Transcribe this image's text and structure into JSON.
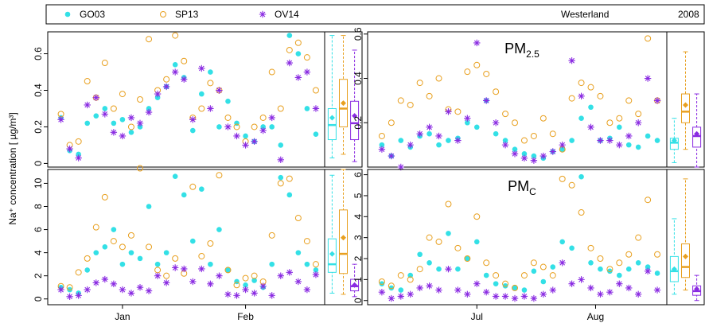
{
  "figure": {
    "ylabel": "Na⁺ concentration [ µg/m³]",
    "location": "Westerland",
    "year": "2008"
  },
  "chart_data": [
    {
      "type": "scatter",
      "x": [
        1,
        3,
        5,
        7,
        9,
        11,
        13,
        15,
        17,
        19,
        21,
        23,
        25,
        27,
        29,
        31,
        33,
        35,
        37,
        39,
        41,
        43,
        45,
        47,
        49,
        51,
        53,
        55,
        57,
        59
      ],
      "xlim": [
        -2,
        61
      ],
      "ylim": [
        -0.02,
        0.72
      ],
      "yticks": [
        0,
        0.2,
        0.4,
        0.6
      ],
      "series": [
        {
          "name": "GO03",
          "color": "#33e0e6",
          "marker": "filled-circle",
          "values": [
            0.25,
            0.07,
            0.05,
            0.22,
            0.26,
            0.3,
            0.22,
            0.24,
            0.17,
            0.2,
            0.3,
            0.36,
            0.42,
            0.54,
            0.47,
            0.18,
            0.38,
            0.5,
            0.2,
            0.34,
            0.22,
            0.15,
            0.12,
            0.2,
            0.2,
            0.1,
            0.7,
            0.6,
            0.3,
            0.16
          ],
          "box": {
            "low": 0.03,
            "q1": 0.13,
            "median": 0.21,
            "q3": 0.3,
            "high": 0.7,
            "mean": 0.25
          }
        },
        {
          "name": "SP13",
          "color": "#e8a020",
          "marker": "open-circle",
          "values": [
            0.27,
            0.1,
            0.12,
            0.45,
            0.36,
            0.55,
            0.3,
            0.38,
            0.2,
            0.35,
            0.68,
            0.4,
            0.46,
            0.7,
            0.56,
            0.25,
            0.3,
            0.44,
            0.4,
            0.25,
            0.2,
            0.12,
            0.2,
            0.25,
            0.5,
            0.3,
            0.62,
            0.66,
            0.58,
            0.4
          ],
          "box": {
            "low": 0.05,
            "q1": 0.2,
            "median": 0.3,
            "q3": 0.46,
            "high": 0.7,
            "mean": 0.33
          }
        },
        {
          "name": "OV14",
          "color": "#8a2be2",
          "marker": "asterisk",
          "values": [
            0.24,
            0.08,
            0.03,
            0.32,
            0.36,
            0.27,
            0.17,
            0.15,
            0.25,
            0.22,
            0.28,
            0.38,
            0.42,
            0.5,
            0.46,
            0.24,
            0.52,
            0.3,
            0.4,
            0.2,
            0.15,
            0.1,
            0.12,
            0.18,
            0.25,
            0.02,
            0.55,
            0.47,
            0.5,
            0.3
          ],
          "box": {
            "low": 0.01,
            "q1": 0.13,
            "median": 0.22,
            "q3": 0.34,
            "high": 0.62,
            "mean": 0.26
          }
        }
      ]
    },
    {
      "type": "scatter",
      "annotation": "PM",
      "annotation_sub": "2.5",
      "x": [
        1,
        3,
        5,
        7,
        9,
        11,
        13,
        15,
        17,
        19,
        21,
        23,
        25,
        27,
        29,
        31,
        33,
        35,
        37,
        39,
        41,
        43,
        45,
        47,
        49,
        51,
        53,
        55,
        57,
        59
      ],
      "xlim": [
        -2,
        61
      ],
      "ylim": [
        0,
        0.61
      ],
      "yticks": [
        0.2,
        0.4,
        0.6
      ],
      "series": [
        {
          "name": "GO03",
          "color": "#33e0e6",
          "marker": "filled-circle",
          "values": [
            0.1,
            0.05,
            0.12,
            0.09,
            0.14,
            0.15,
            0.1,
            0.12,
            0.13,
            0.2,
            0.18,
            0.3,
            0.15,
            0.12,
            0.08,
            0.06,
            0.05,
            0.04,
            0.07,
            0.08,
            0.12,
            0.22,
            0.27,
            0.12,
            0.13,
            0.18,
            0.1,
            0.09,
            0.14,
            0.12
          ],
          "box": {
            "low": 0.02,
            "q1": 0.08,
            "median": 0.11,
            "q3": 0.13,
            "high": 0.22,
            "mean": 0.12
          }
        },
        {
          "name": "SP13",
          "color": "#e8a020",
          "marker": "open-circle",
          "values": [
            0.14,
            0.2,
            0.3,
            0.28,
            0.38,
            0.32,
            0.4,
            0.26,
            0.25,
            0.43,
            0.46,
            0.42,
            0.34,
            0.24,
            0.2,
            0.12,
            0.14,
            0.22,
            0.15,
            0.08,
            0.31,
            0.38,
            0.36,
            0.32,
            0.2,
            0.22,
            0.3,
            0.24,
            0.58,
            0.3
          ],
          "box": {
            "low": 0.08,
            "q1": 0.2,
            "median": 0.25,
            "q3": 0.33,
            "high": 0.52,
            "mean": 0.28
          }
        },
        {
          "name": "OV14",
          "color": "#8a2be2",
          "marker": "asterisk",
          "values": [
            0.08,
            0.05,
            0.0,
            0.1,
            0.15,
            0.18,
            0.14,
            0.25,
            0.12,
            0.22,
            0.56,
            0.3,
            0.2,
            0.1,
            0.06,
            0.04,
            0.03,
            0.05,
            0.07,
            0.1,
            0.48,
            0.32,
            0.18,
            0.12,
            0.12,
            0.1,
            0.14,
            0.2,
            0.4,
            0.3
          ],
          "box": {
            "low": 0.0,
            "q1": 0.09,
            "median": 0.14,
            "q3": 0.18,
            "high": 0.33,
            "mean": 0.15
          }
        }
      ]
    },
    {
      "type": "scatter",
      "x": [
        1,
        3,
        5,
        7,
        9,
        11,
        13,
        15,
        17,
        19,
        21,
        23,
        25,
        27,
        29,
        31,
        33,
        35,
        37,
        39,
        41,
        43,
        45,
        47,
        49,
        51,
        53,
        55,
        57,
        59
      ],
      "xlim": [
        -2,
        61
      ],
      "xticks": [
        {
          "value": 15,
          "label": "Jan"
        },
        {
          "value": 43,
          "label": "Feb"
        }
      ],
      "ylim": [
        -0.5,
        11.2
      ],
      "yticks": [
        0,
        2,
        4,
        6,
        8,
        10
      ],
      "series": [
        {
          "name": "GO03",
          "color": "#33e0e6",
          "marker": "filled-circle",
          "values": [
            1.0,
            0.8,
            0.5,
            2.5,
            4.0,
            4.5,
            6.0,
            3.0,
            4.0,
            3.5,
            8.0,
            3.0,
            4.0,
            10.6,
            9.0,
            5.0,
            9.5,
            3.0,
            6.0,
            2.5,
            1.5,
            1.2,
            1.6,
            1.0,
            3.0,
            10.5,
            9.0,
            4.0,
            3.0,
            2.5
          ],
          "box": {
            "low": 0.5,
            "q1": 2.3,
            "median": 3.0,
            "q3": 5.2,
            "high": 10.7,
            "mean": 3.9
          }
        },
        {
          "name": "SP13",
          "color": "#e8a020",
          "marker": "open-circle",
          "values": [
            1.1,
            1.0,
            2.3,
            3.5,
            6.2,
            8.8,
            5.0,
            4.5,
            5.5,
            11.3,
            4.5,
            2.5,
            2.0,
            3.5,
            2.2,
            9.7,
            3.7,
            4.8,
            10.7,
            2.5,
            1.2,
            1.8,
            2.0,
            1.5,
            5.5,
            10.0,
            10.4,
            7.0,
            5.0,
            3.0
          ],
          "box": {
            "low": 0.4,
            "q1": 2.2,
            "median": 3.9,
            "q3": 7.7,
            "high": 11.2,
            "mean": 5.3
          }
        },
        {
          "name": "OV14",
          "color": "#8a2be2",
          "marker": "asterisk",
          "values": [
            0.8,
            0.2,
            0.3,
            0.8,
            1.4,
            1.7,
            1.3,
            0.8,
            0.5,
            1.0,
            0.7,
            2.0,
            1.4,
            2.7,
            2.6,
            1.5,
            2.6,
            1.3,
            2.0,
            0.4,
            0.3,
            0.8,
            0.5,
            1.1,
            0.3,
            2.0,
            2.3,
            1.5,
            0.8,
            2.1
          ],
          "box": {
            "low": 0.2,
            "q1": 0.7,
            "median": 1.1,
            "q3": 1.7,
            "high": 3.0,
            "mean": 1.2
          }
        }
      ]
    },
    {
      "type": "scatter",
      "annotation": "PM",
      "annotation_sub": "C",
      "x": [
        1,
        3,
        5,
        7,
        9,
        11,
        13,
        15,
        17,
        19,
        21,
        23,
        25,
        27,
        29,
        31,
        33,
        35,
        37,
        39,
        41,
        43,
        45,
        47,
        49,
        51,
        53,
        55,
        57,
        59
      ],
      "xlim": [
        -2,
        61
      ],
      "xticks": [
        {
          "value": 21,
          "label": "Jul"
        },
        {
          "value": 46,
          "label": "Aug"
        }
      ],
      "ylim": [
        -0.2,
        6.25
      ],
      "yticks": [
        0,
        1,
        2,
        3,
        4,
        5,
        6
      ],
      "series": [
        {
          "name": "GO03",
          "color": "#33e0e6",
          "marker": "filled-circle",
          "values": [
            0.8,
            0.6,
            0.5,
            1.2,
            2.2,
            1.8,
            1.5,
            3.2,
            1.5,
            2.0,
            2.8,
            1.2,
            0.8,
            0.7,
            0.6,
            0.5,
            1.4,
            0.9,
            1.6,
            2.8,
            2.5,
            5.9,
            1.8,
            1.5,
            1.4,
            1.2,
            1.5,
            1.8,
            1.6,
            1.3
          ],
          "box": {
            "low": 0.3,
            "q1": 0.9,
            "median": 1.4,
            "q3": 2.1,
            "high": 3.9,
            "mean": 1.5
          }
        },
        {
          "name": "SP13",
          "color": "#e8a020",
          "marker": "open-circle",
          "values": [
            0.9,
            0.7,
            1.2,
            1.0,
            1.5,
            3.0,
            2.8,
            4.6,
            2.5,
            2.0,
            4.0,
            1.8,
            1.2,
            0.8,
            0.6,
            1.2,
            1.8,
            1.6,
            1.2,
            5.8,
            5.5,
            4.2,
            2.5,
            2.0,
            1.5,
            1.8,
            2.2,
            3.0,
            4.8,
            2.2
          ],
          "box": {
            "low": 0.5,
            "q1": 1.1,
            "median": 1.6,
            "q3": 2.7,
            "high": 5.8,
            "mean": 2.1
          }
        },
        {
          "name": "OV14",
          "color": "#8a2be2",
          "marker": "asterisk",
          "values": [
            0.4,
            0.1,
            0.2,
            0.3,
            0.6,
            0.7,
            0.5,
            1.5,
            0.5,
            0.3,
            0.8,
            0.4,
            0.2,
            0.2,
            0.1,
            0.2,
            0.1,
            0.3,
            0.5,
            1.8,
            0.8,
            1.0,
            0.6,
            0.3,
            0.4,
            0.8,
            0.6,
            0.3,
            1.4,
            0.5
          ],
          "box": {
            "low": 0.0,
            "q1": 0.25,
            "median": 0.45,
            "q3": 0.7,
            "high": 1.2,
            "mean": 0.55
          }
        }
      ]
    }
  ]
}
